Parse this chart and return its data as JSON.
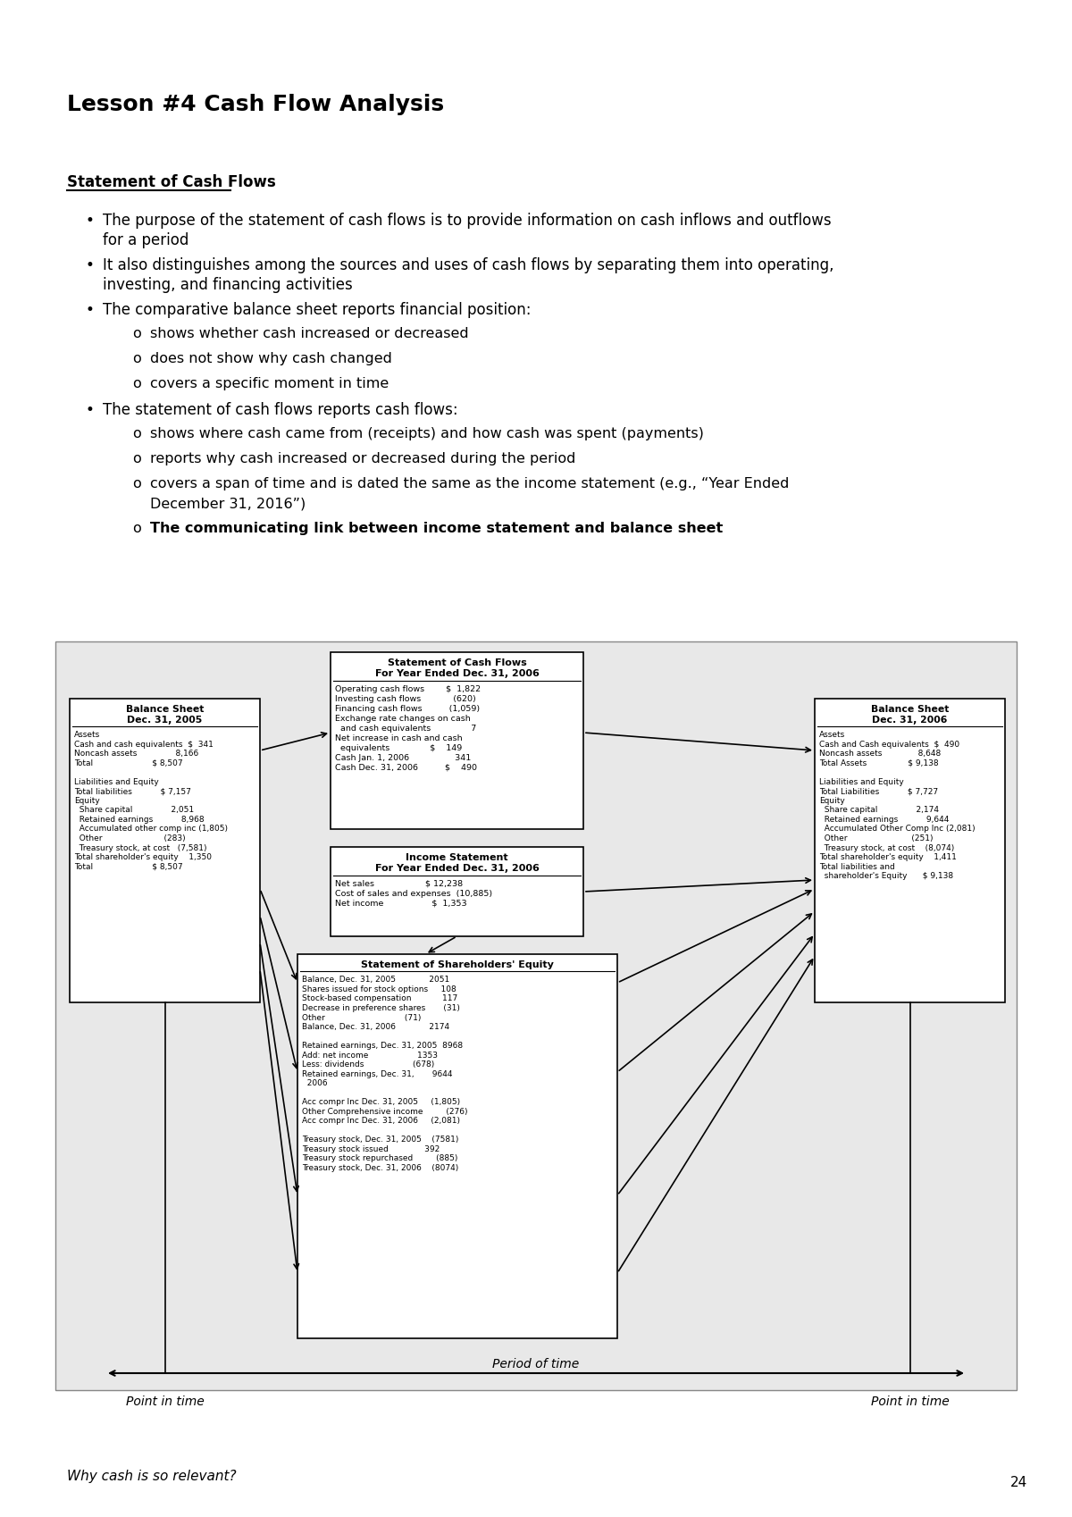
{
  "title": "Lesson #4 Cash Flow Analysis",
  "section_header": "Statement of Cash Flows",
  "bg_color": "#ffffff",
  "bullet_points": [
    {
      "text": "The purpose of the statement of cash flows is to provide information on cash inflows and outflows\nfor a period",
      "level": 1,
      "bold": false
    },
    {
      "text": "It also distinguishes among the sources and uses of cash flows by separating them into operating,\ninvesting, and financing activities",
      "level": 1,
      "bold": false
    },
    {
      "text": "The comparative balance sheet reports financial position:",
      "level": 1,
      "bold": false
    },
    {
      "text": "shows whether cash increased or decreased",
      "level": 2,
      "bold": false
    },
    {
      "text": "does not show why cash changed",
      "level": 2,
      "bold": false
    },
    {
      "text": "covers a specific moment in time",
      "level": 2,
      "bold": false
    },
    {
      "text": "The statement of cash flows reports cash flows:",
      "level": 1,
      "bold": false
    },
    {
      "text": "shows where cash came from (receipts) and how cash was spent (payments)",
      "level": 2,
      "bold": false
    },
    {
      "text": "reports why cash increased or decreased during the period",
      "level": 2,
      "bold": false
    },
    {
      "text": "covers a span of time and is dated the same as the income statement (e.g., “Year Ended\nDecember 31, 2016”)",
      "level": 2,
      "bold": false
    },
    {
      "text": "The communicating link between income statement and balance sheet",
      "level": 2,
      "bold": true
    }
  ],
  "diagram": {
    "outer_box_color": "#e8e8e8",
    "outer_border_color": "#888888",
    "box_color": "#ffffff",
    "box_border": "#000000",
    "left_box": {
      "title_lines": [
        "Balance Sheet",
        "Dec. 31, 2005"
      ],
      "lines": [
        "Assets",
        "Cash and cash equivalents  $  341",
        "Noncash assets               8,166",
        "Total                       $ 8,507",
        "",
        "Liabilities and Equity",
        "Total liabilities           $ 7,157",
        "Equity",
        "  Share capital               2,051",
        "  Retained earnings           8,968",
        "  Accumulated other comp inc (1,805)",
        "  Other                        (283)",
        "  Treasury stock, at cost   (7,581)",
        "Total shareholder's equity    1,350",
        "Total                       $ 8,507"
      ]
    },
    "right_box": {
      "title_lines": [
        "Balance Sheet",
        "Dec. 31, 2006"
      ],
      "lines": [
        "Assets",
        "Cash and Cash equivalents  $  490",
        "Noncash assets              8,648",
        "Total Assets                $ 9,138",
        "",
        "Liabilities and Equity",
        "Total Liabilities           $ 7,727",
        "Equity",
        "  Share capital               2,174",
        "  Retained earnings           9,644",
        "  Accumulated Other Comp Inc (2,081)",
        "  Other                         (251)",
        "  Treasury stock, at cost    (8,074)",
        "Total shareholder's equity    1,411",
        "Total liabilities and",
        "  shareholder's Equity      $ 9,138"
      ]
    },
    "top_center_box": {
      "title_lines": [
        "Statement of Cash Flows",
        "For Year Ended Dec. 31, 2006"
      ],
      "lines": [
        "Operating cash flows        $  1,822",
        "Investing cash flows            (620)",
        "Financing cash flows          (1,059)",
        "Exchange rate changes on cash",
        "  and cash equivalents               7",
        "Net increase in cash and cash",
        "  equivalents               $    149",
        "Cash Jan. 1, 2006                 341",
        "Cash Dec. 31, 2006          $    490"
      ]
    },
    "income_box": {
      "title_lines": [
        "Income Statement",
        "For Year Ended Dec. 31, 2006"
      ],
      "lines": [
        "Net sales                   $ 12,238",
        "Cost of sales and expenses  (10,885)",
        "Net income                  $  1,353"
      ]
    },
    "equity_box": {
      "title_lines": [
        "Statement of Shareholders' Equity"
      ],
      "lines": [
        "Balance, Dec. 31, 2005             2051",
        "Shares issued for stock options     108",
        "Stock-based compensation            117",
        "Decrease in preference shares       (31)",
        "Other                               (71)",
        "Balance, Dec. 31, 2006             2174",
        "",
        "Retained earnings, Dec. 31, 2005  8968",
        "Add: net income                   1353",
        "Less: dividends                   (678)",
        "Retained earnings, Dec. 31,       9644",
        "  2006",
        "",
        "Acc compr Inc Dec. 31, 2005     (1,805)",
        "Other Comprehensive income         (276)",
        "Acc compr Inc Dec. 31, 2006     (2,081)",
        "",
        "Treasury stock, Dec. 31, 2005    (7581)",
        "Treasury stock issued              392",
        "Treasury stock repurchased         (885)",
        "Treasury stock, Dec. 31, 2006    (8074)"
      ]
    }
  },
  "footer_text": "Why cash is so relevant?",
  "page_number": "24",
  "point_in_time_label": "Point in time",
  "period_of_time_label": "Period of time"
}
